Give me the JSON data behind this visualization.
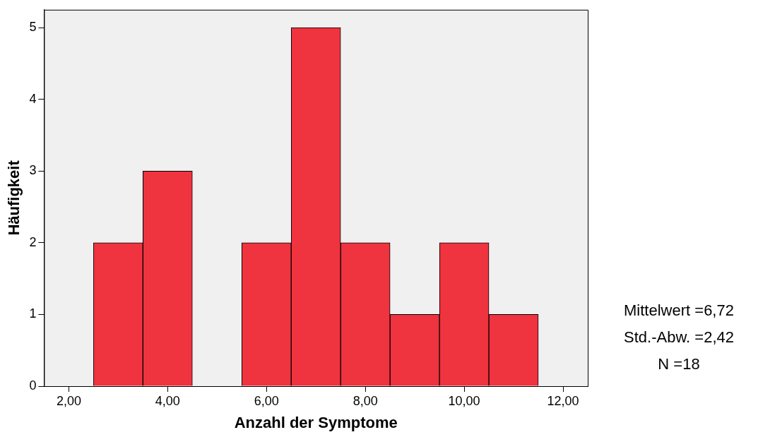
{
  "chart_data": {
    "type": "histogram",
    "xlabel": "Anzahl der Symptome",
    "ylabel": "Häufigkeit",
    "bins": [
      2.5,
      3.5,
      4.5,
      5.5,
      6.5,
      7.5,
      8.5,
      9.5,
      10.5,
      11.5
    ],
    "values": [
      2,
      3,
      0,
      2,
      5,
      2,
      1,
      2,
      1
    ],
    "color": "#ef333f",
    "xlim": [
      1.5,
      12.5
    ],
    "xticks": [
      {
        "value": 2,
        "label": "2,00"
      },
      {
        "value": 4,
        "label": "4,00"
      },
      {
        "value": 6,
        "label": "6,00"
      },
      {
        "value": 8,
        "label": "8,00"
      },
      {
        "value": 10,
        "label": "10,00"
      },
      {
        "value": 12,
        "label": "12,00"
      }
    ],
    "ylim": [
      0,
      5.25
    ],
    "yticks": [
      0,
      1,
      2,
      3,
      4,
      5
    ],
    "grid": false,
    "legend": false,
    "annotations": [
      "Mittelwert =6,72",
      "Std.-Abw. =2,42",
      "N =18"
    ]
  }
}
